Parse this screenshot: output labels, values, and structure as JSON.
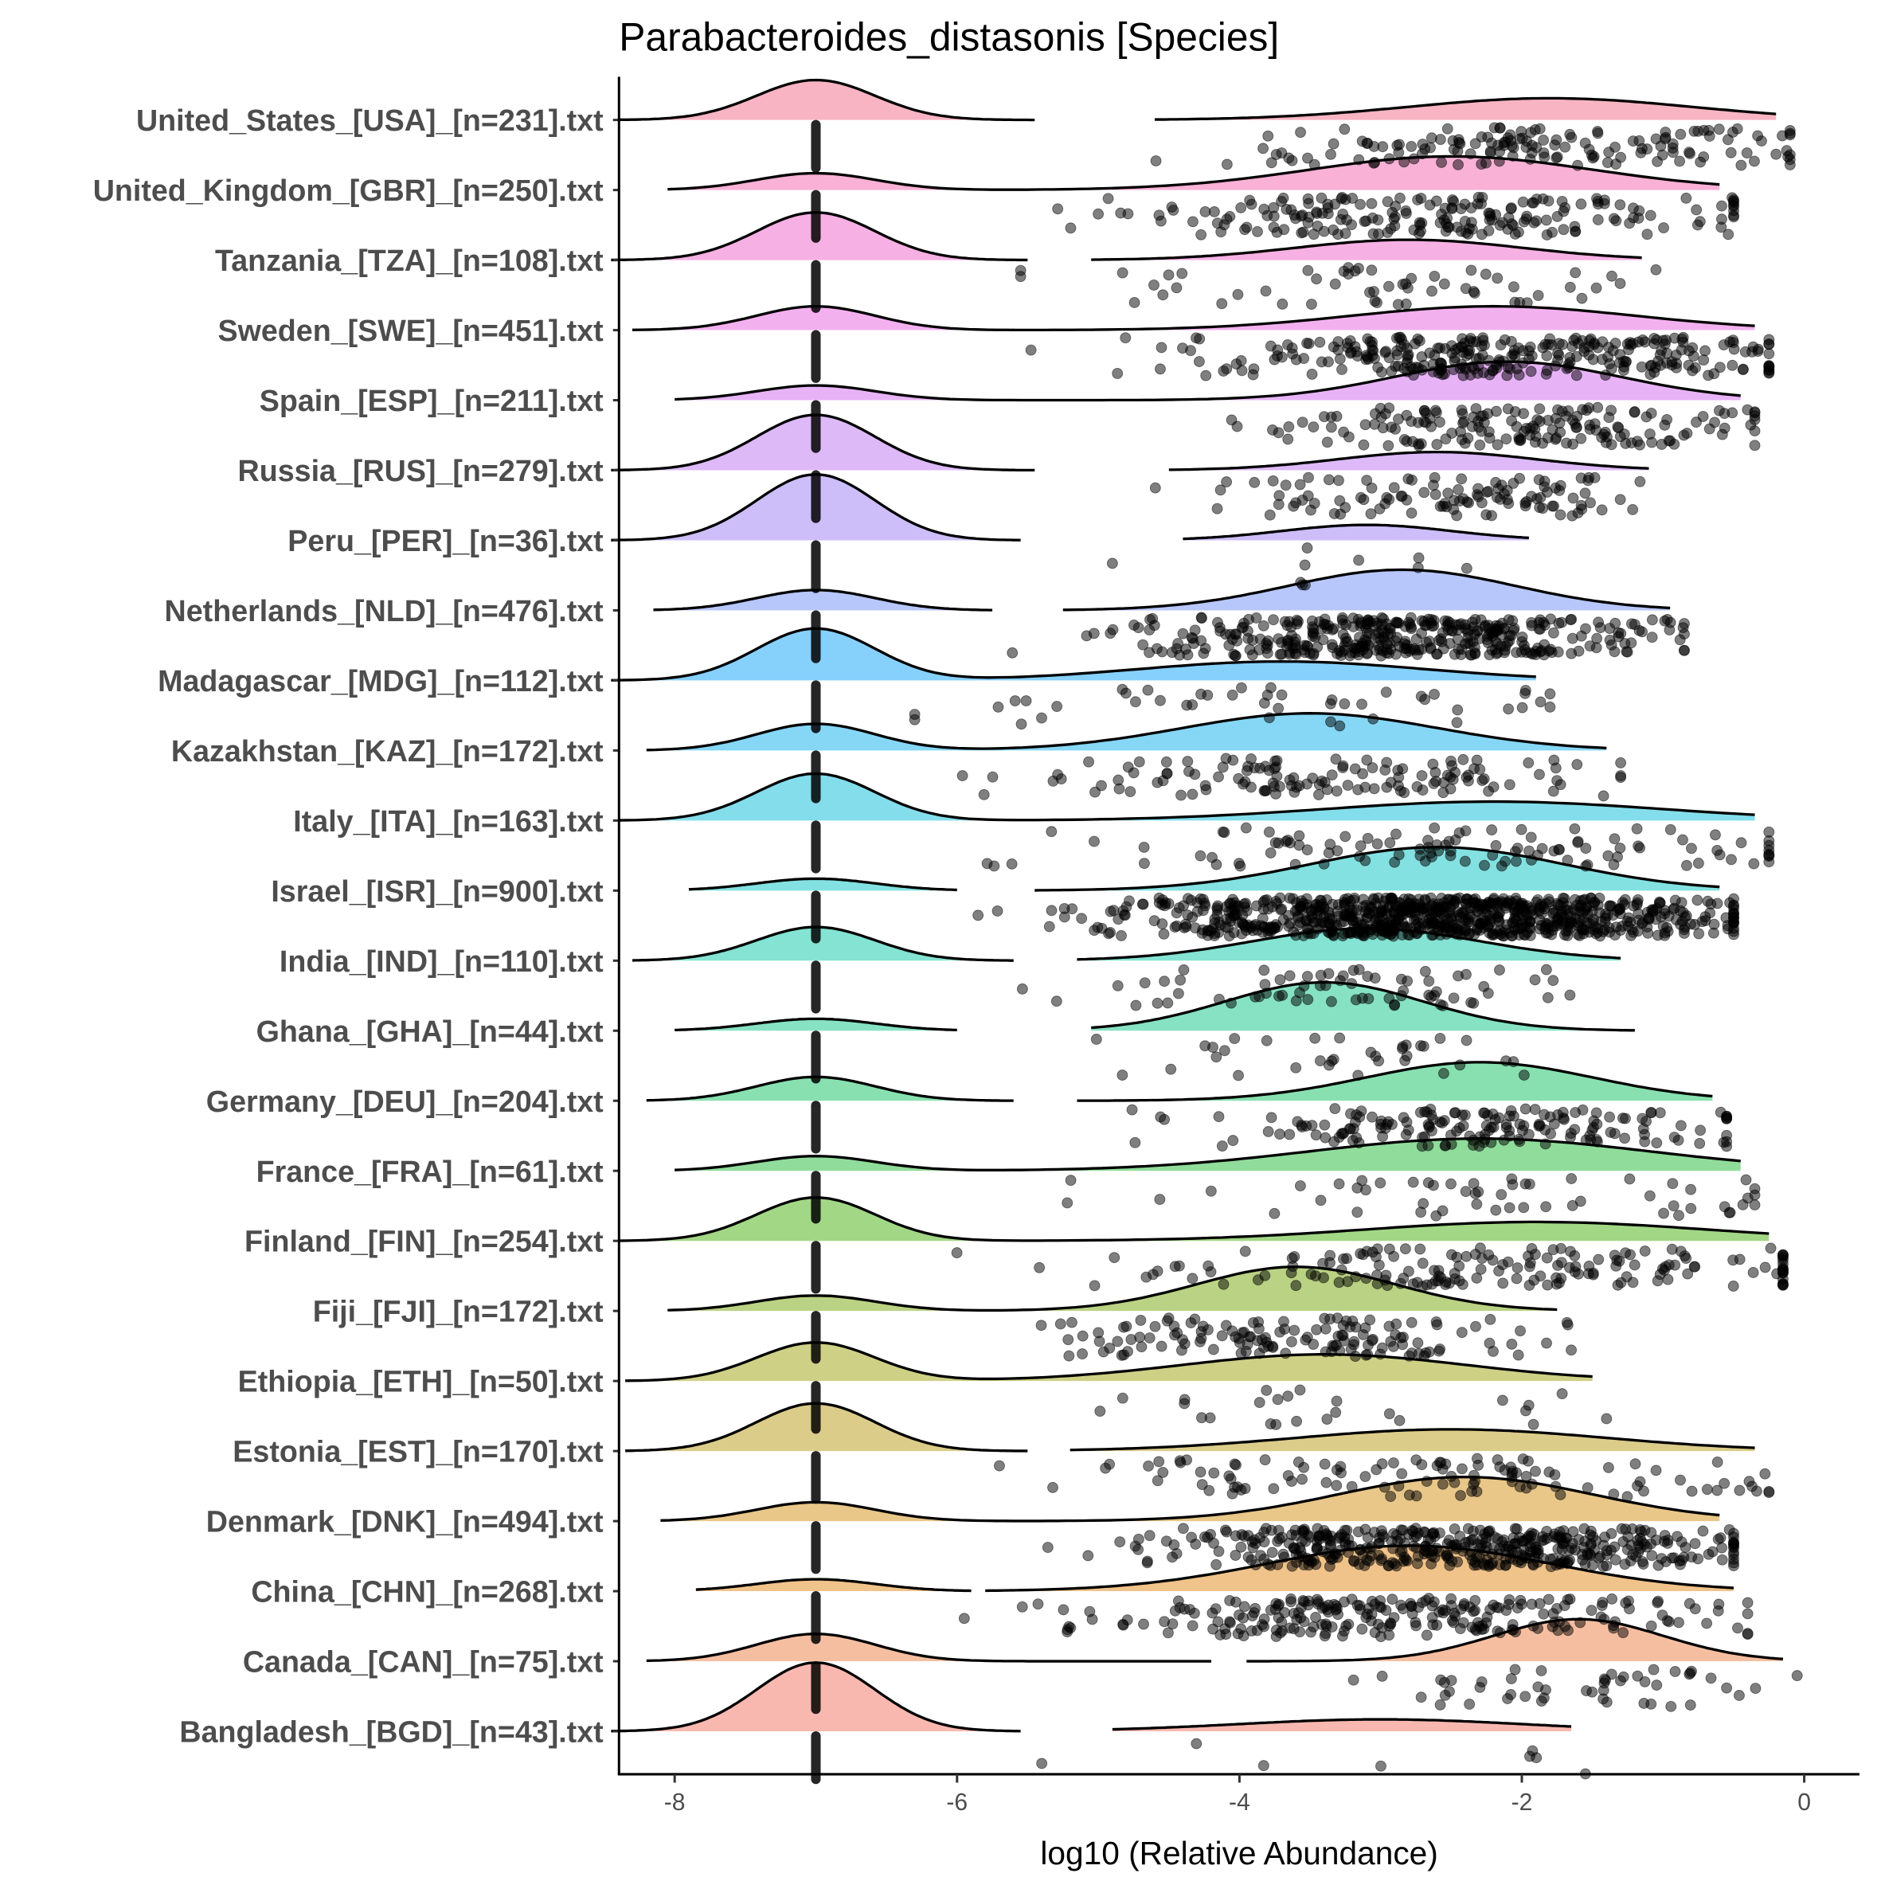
{
  "chart_data": {
    "type": "raincloud",
    "title": "Parabacteroides_distasonis [Species]",
    "xlabel": "log10 (Relative Abundance)",
    "ylabel": "",
    "xlim": [
      -8.4,
      0.4
    ],
    "xticks": [
      -8,
      -6,
      -4,
      -2,
      0
    ],
    "xtick_labels": [
      "-8",
      "-6",
      "-4",
      "-2",
      "0"
    ],
    "zero_value": -7,
    "grid": false,
    "legend": "none",
    "groups": [
      {
        "label": "United_States_[USA]_[n=231].txt",
        "color": "#F8B0C0",
        "zero_peak": 0.57,
        "zero_range": [
          -8.4,
          -5.45
        ],
        "nz_mean": -1.8,
        "nz_sd": 1.0,
        "nz_peak": 0.31,
        "nz_range": [
          -4.6,
          -0.2
        ],
        "continuous": false,
        "nonzero_n": 150
      },
      {
        "label": "United_Kingdom_[GBR]_[n=250].txt",
        "color": "#F9ADD4",
        "zero_peak": 0.24,
        "zero_range": [
          -8.05,
          -5.5
        ],
        "nz_mean": -2.5,
        "nz_sd": 1.0,
        "nz_peak": 0.48,
        "nz_range": [
          -6.0,
          -0.6
        ],
        "continuous": true,
        "nonzero_n": 200
      },
      {
        "label": "Tanzania_[TZA]_[n=108].txt",
        "color": "#F7ACE2",
        "zero_peak": 0.68,
        "zero_range": [
          -8.45,
          -5.5
        ],
        "nz_mean": -2.8,
        "nz_sd": 0.8,
        "nz_peak": 0.29,
        "nz_range": [
          -5.05,
          -1.15
        ],
        "continuous": false,
        "nonzero_n": 55
      },
      {
        "label": "Sweden_[SWE]_[n=451].txt",
        "color": "#F2ACEE",
        "zero_peak": 0.34,
        "zero_range": [
          -8.3,
          -5.5
        ],
        "nz_mean": -2.2,
        "nz_sd": 1.0,
        "nz_peak": 0.34,
        "nz_range": [
          -6.0,
          -0.35
        ],
        "continuous": true,
        "nonzero_n": 300
      },
      {
        "label": "Spain_[ESP]_[n=211].txt",
        "color": "#E6AFF5",
        "zero_peak": 0.21,
        "zero_range": [
          -8.0,
          -5.5
        ],
        "nz_mean": -2.1,
        "nz_sd": 0.8,
        "nz_peak": 0.55,
        "nz_range": [
          -5.6,
          -0.45
        ],
        "continuous": true,
        "nonzero_n": 170
      },
      {
        "label": "Russia_[RUS]_[n=279].txt",
        "color": "#DBB5F8",
        "zero_peak": 0.79,
        "zero_range": [
          -8.45,
          -5.45
        ],
        "nz_mean": -2.6,
        "nz_sd": 0.7,
        "nz_peak": 0.26,
        "nz_range": [
          -4.5,
          -1.1
        ],
        "continuous": false,
        "nonzero_n": 110
      },
      {
        "label": "Peru_[PER]_[n=36].txt",
        "color": "#CABBFA",
        "zero_peak": 0.94,
        "zero_range": [
          -8.45,
          -5.55
        ],
        "nz_mean": -3.1,
        "nz_sd": 0.6,
        "nz_peak": 0.22,
        "nz_range": [
          -4.4,
          -1.95
        ],
        "continuous": false,
        "nonzero_n": 10
      },
      {
        "label": "Netherlands_[NLD]_[n=476].txt",
        "color": "#B3C4FB",
        "zero_peak": 0.29,
        "zero_range": [
          -8.15,
          -5.75
        ],
        "nz_mean": -2.85,
        "nz_sd": 0.8,
        "nz_peak": 0.58,
        "nz_range": [
          -5.25,
          -0.95
        ],
        "continuous": false,
        "nonzero_n": 400
      },
      {
        "label": "Madagascar_[MDG]_[n=112].txt",
        "color": "#7FCDFC",
        "zero_peak": 0.74,
        "zero_range": [
          -8.45,
          -5.5
        ],
        "nz_mean": -3.7,
        "nz_sd": 1.0,
        "nz_peak": 0.27,
        "nz_range": [
          -5.8,
          -1.9
        ],
        "continuous": true,
        "nonzero_n": 45
      },
      {
        "label": "Kazakhstan_[KAZ]_[n=172].txt",
        "color": "#80D5F4",
        "zero_peak": 0.38,
        "zero_range": [
          -8.2,
          -5.5
        ],
        "nz_mean": -3.5,
        "nz_sd": 0.9,
        "nz_peak": 0.53,
        "nz_range": [
          -5.8,
          -1.4
        ],
        "continuous": true,
        "nonzero_n": 130
      },
      {
        "label": "Italy_[ITA]_[n=163].txt",
        "color": "#7DDBEA",
        "zero_peak": 0.67,
        "zero_range": [
          -8.4,
          -5.5
        ],
        "nz_mean": -2.2,
        "nz_sd": 1.2,
        "nz_peak": 0.27,
        "nz_range": [
          -5.8,
          -0.35
        ],
        "continuous": true,
        "nonzero_n": 110
      },
      {
        "label": "Israel_[ISR]_[n=900].txt",
        "color": "#7CDFDF",
        "zero_peak": 0.17,
        "zero_range": [
          -7.9,
          -6.0
        ],
        "nz_mean": -2.6,
        "nz_sd": 0.9,
        "nz_peak": 0.62,
        "nz_range": [
          -5.45,
          -0.6
        ],
        "continuous": false,
        "nonzero_n": 850
      },
      {
        "label": "India_[IND]_[n=110].txt",
        "color": "#7DE1D1",
        "zero_peak": 0.48,
        "zero_range": [
          -8.3,
          -5.6
        ],
        "nz_mean": -3.1,
        "nz_sd": 0.8,
        "nz_peak": 0.46,
        "nz_range": [
          -5.15,
          -1.3
        ],
        "continuous": false,
        "nonzero_n": 70
      },
      {
        "label": "Ghana_[GHA]_[n=44].txt",
        "color": "#80E0C0",
        "zero_peak": 0.17,
        "zero_range": [
          -8.0,
          -6.0
        ],
        "nz_mean": -3.4,
        "nz_sd": 0.7,
        "nz_peak": 0.69,
        "nz_range": [
          -5.05,
          -1.2
        ],
        "continuous": false,
        "nonzero_n": 35
      },
      {
        "label": "Germany_[DEU]_[n=204].txt",
        "color": "#82DEAC",
        "zero_peak": 0.34,
        "zero_range": [
          -8.2,
          -5.6
        ],
        "nz_mean": -2.3,
        "nz_sd": 0.8,
        "nz_peak": 0.55,
        "nz_range": [
          -5.15,
          -0.65
        ],
        "continuous": false,
        "nonzero_n": 170
      },
      {
        "label": "France_[FRA]_[n=61].txt",
        "color": "#8ADA96",
        "zero_peak": 0.21,
        "zero_range": [
          -8.0,
          -5.5
        ],
        "nz_mean": -2.3,
        "nz_sd": 1.2,
        "nz_peak": 0.46,
        "nz_range": [
          -6.0,
          -0.45
        ],
        "continuous": true,
        "nonzero_n": 55
      },
      {
        "label": "Finland_[FIN]_[n=254].txt",
        "color": "#9DD580",
        "zero_peak": 0.62,
        "zero_range": [
          -8.4,
          -5.5
        ],
        "nz_mean": -1.9,
        "nz_sd": 1.2,
        "nz_peak": 0.27,
        "nz_range": [
          -5.8,
          -0.25
        ],
        "continuous": true,
        "nonzero_n": 170
      },
      {
        "label": "Fiji_[FJI]_[n=172].txt",
        "color": "#B6D07C",
        "zero_peak": 0.22,
        "zero_range": [
          -8.05,
          -5.5
        ],
        "nz_mean": -3.6,
        "nz_sd": 0.7,
        "nz_peak": 0.63,
        "nz_range": [
          -6.0,
          -1.75
        ],
        "continuous": true,
        "nonzero_n": 140
      },
      {
        "label": "Ethiopia_[ETH]_[n=50].txt",
        "color": "#CBCD80",
        "zero_peak": 0.55,
        "zero_range": [
          -8.35,
          -5.5
        ],
        "nz_mean": -3.4,
        "nz_sd": 1.0,
        "nz_peak": 0.38,
        "nz_range": [
          -5.8,
          -1.5
        ],
        "continuous": true,
        "nonzero_n": 25
      },
      {
        "label": "Estonia_[EST]_[n=170].txt",
        "color": "#D9C983",
        "zero_peak": 0.68,
        "zero_range": [
          -8.35,
          -5.5
        ],
        "nz_mean": -2.5,
        "nz_sd": 1.1,
        "nz_peak": 0.31,
        "nz_range": [
          -5.2,
          -0.35
        ],
        "continuous": false,
        "nonzero_n": 110
      },
      {
        "label": "Denmark_[DNK]_[n=494].txt",
        "color": "#E7C483",
        "zero_peak": 0.27,
        "zero_range": [
          -8.1,
          -5.5
        ],
        "nz_mean": -2.4,
        "nz_sd": 0.9,
        "nz_peak": 0.63,
        "nz_range": [
          -5.8,
          -0.6
        ],
        "continuous": true,
        "nonzero_n": 450
      },
      {
        "label": "China_[CHN]_[n=268].txt",
        "color": "#EFC084",
        "zero_peak": 0.17,
        "zero_range": [
          -7.85,
          -5.9
        ],
        "nz_mean": -2.8,
        "nz_sd": 1.0,
        "nz_peak": 0.65,
        "nz_range": [
          -5.8,
          -0.5
        ],
        "continuous": false,
        "nonzero_n": 240
      },
      {
        "label": "Canada_[CAN]_[n=75].txt",
        "color": "#F5BB9C",
        "zero_peak": 0.39,
        "zero_range": [
          -8.2,
          -4.2
        ],
        "nz_mean": -1.6,
        "nz_sd": 0.6,
        "nz_peak": 0.6,
        "nz_range": [
          -3.95,
          -0.15
        ],
        "continuous": false,
        "nonzero_n": 50
      },
      {
        "label": "Bangladesh_[BGD]_[n=43].txt",
        "color": "#F8B4AC",
        "zero_peak": 0.98,
        "zero_range": [
          -8.45,
          -5.55
        ],
        "nz_mean": -3.0,
        "nz_sd": 1.0,
        "nz_peak": 0.17,
        "nz_range": [
          -4.9,
          -1.65
        ],
        "continuous": false,
        "nonzero_n": 8
      }
    ]
  }
}
